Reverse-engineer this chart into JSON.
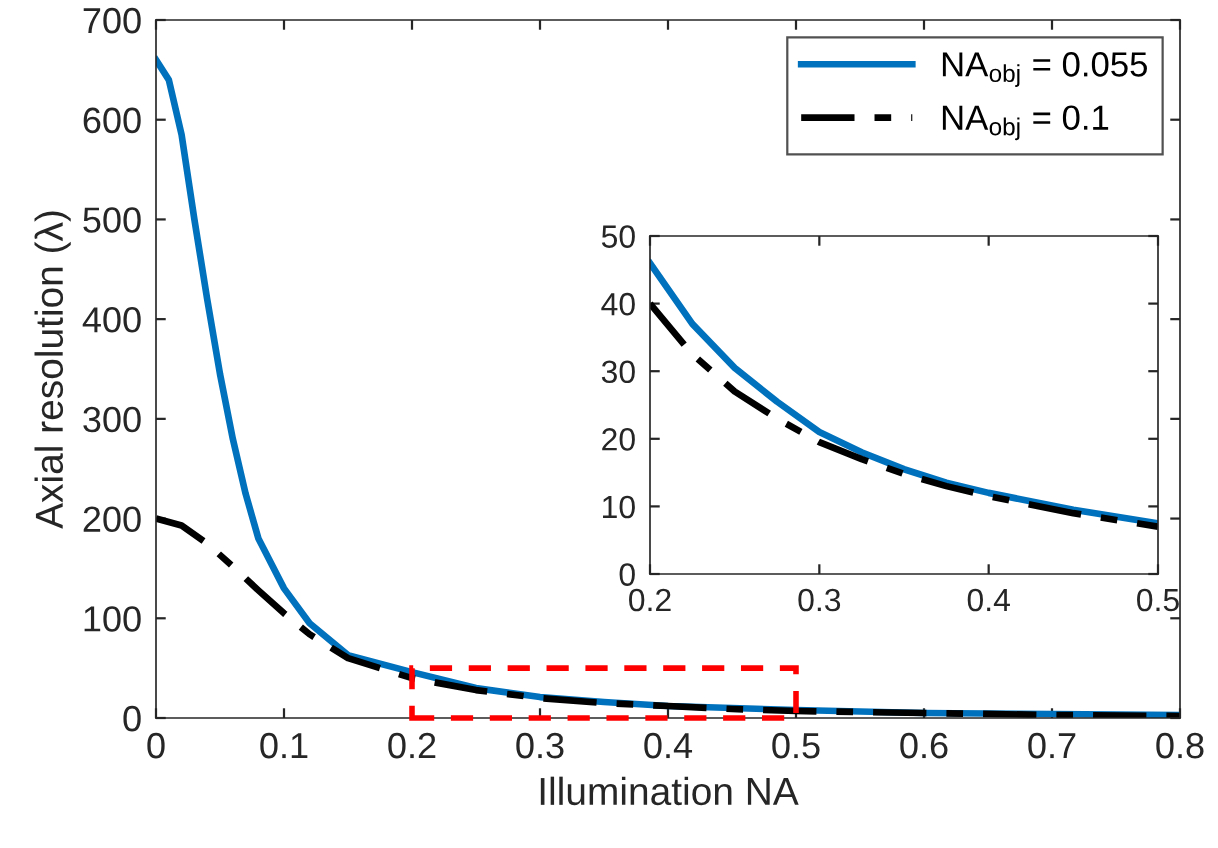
{
  "chart_data": [
    {
      "type": "line",
      "xlabel": "Illumination NA",
      "ylabel": "Axial resolution (λ)",
      "xlim": [
        0,
        0.8
      ],
      "ylim": [
        0,
        700
      ],
      "xticks": [
        0,
        0.1,
        0.2,
        0.3,
        0.4,
        0.5,
        0.6,
        0.7,
        0.8
      ],
      "yticks": [
        0,
        100,
        200,
        300,
        400,
        500,
        600,
        700
      ],
      "grid": false,
      "legend": "top right",
      "marker": "none",
      "series": [
        {
          "name": "NA$_{obj}$ = 0.055",
          "color": "#0072bd",
          "line_style": "solid",
          "x": [
            0,
            0.01,
            0.02,
            0.03,
            0.04,
            0.05,
            0.06,
            0.07,
            0.08,
            0.1,
            0.12,
            0.15,
            0.2,
            0.25,
            0.3,
            0.35,
            0.4,
            0.45,
            0.5,
            0.6,
            0.7,
            0.8
          ],
          "values": [
            660,
            640,
            585,
            500,
            420,
            345,
            280,
            225,
            180,
            130,
            95,
            63,
            46,
            30,
            21,
            16,
            12,
            10,
            8,
            5,
            4,
            3
          ]
        },
        {
          "name": "NA$_{obj}$ = 0.1",
          "color": "#000000",
          "line_style": "dashdot",
          "x": [
            0,
            0.02,
            0.04,
            0.06,
            0.08,
            0.1,
            0.12,
            0.15,
            0.2,
            0.25,
            0.3,
            0.35,
            0.4,
            0.45,
            0.5,
            0.6,
            0.7,
            0.8
          ],
          "values": [
            200,
            193,
            175,
            152,
            128,
            105,
            84,
            60,
            40,
            28,
            20,
            15,
            12,
            9,
            7,
            5,
            3,
            2
          ]
        }
      ]
    },
    {
      "type": "line",
      "xlim": [
        0.2,
        0.5
      ],
      "ylim": [
        0,
        50
      ],
      "xticks": [
        0.2,
        0.3,
        0.4,
        0.5
      ],
      "yticks": [
        0,
        10,
        20,
        30,
        40,
        50
      ],
      "grid": false,
      "marker": "none",
      "series": [
        {
          "color": "#0072bd",
          "line_style": "solid",
          "x": [
            0.2,
            0.225,
            0.25,
            0.275,
            0.3,
            0.325,
            0.35,
            0.375,
            0.4,
            0.45,
            0.5
          ],
          "values": [
            46,
            37,
            30.5,
            25.5,
            21,
            18,
            15.5,
            13.5,
            12,
            9.5,
            7.5
          ]
        },
        {
          "color": "#000000",
          "line_style": "dashdot",
          "x": [
            0.2,
            0.225,
            0.25,
            0.275,
            0.3,
            0.325,
            0.35,
            0.375,
            0.4,
            0.45,
            0.5
          ],
          "values": [
            40,
            32.5,
            27,
            23,
            19.5,
            17,
            14.8,
            13,
            11.5,
            9,
            7
          ]
        }
      ]
    }
  ]
}
